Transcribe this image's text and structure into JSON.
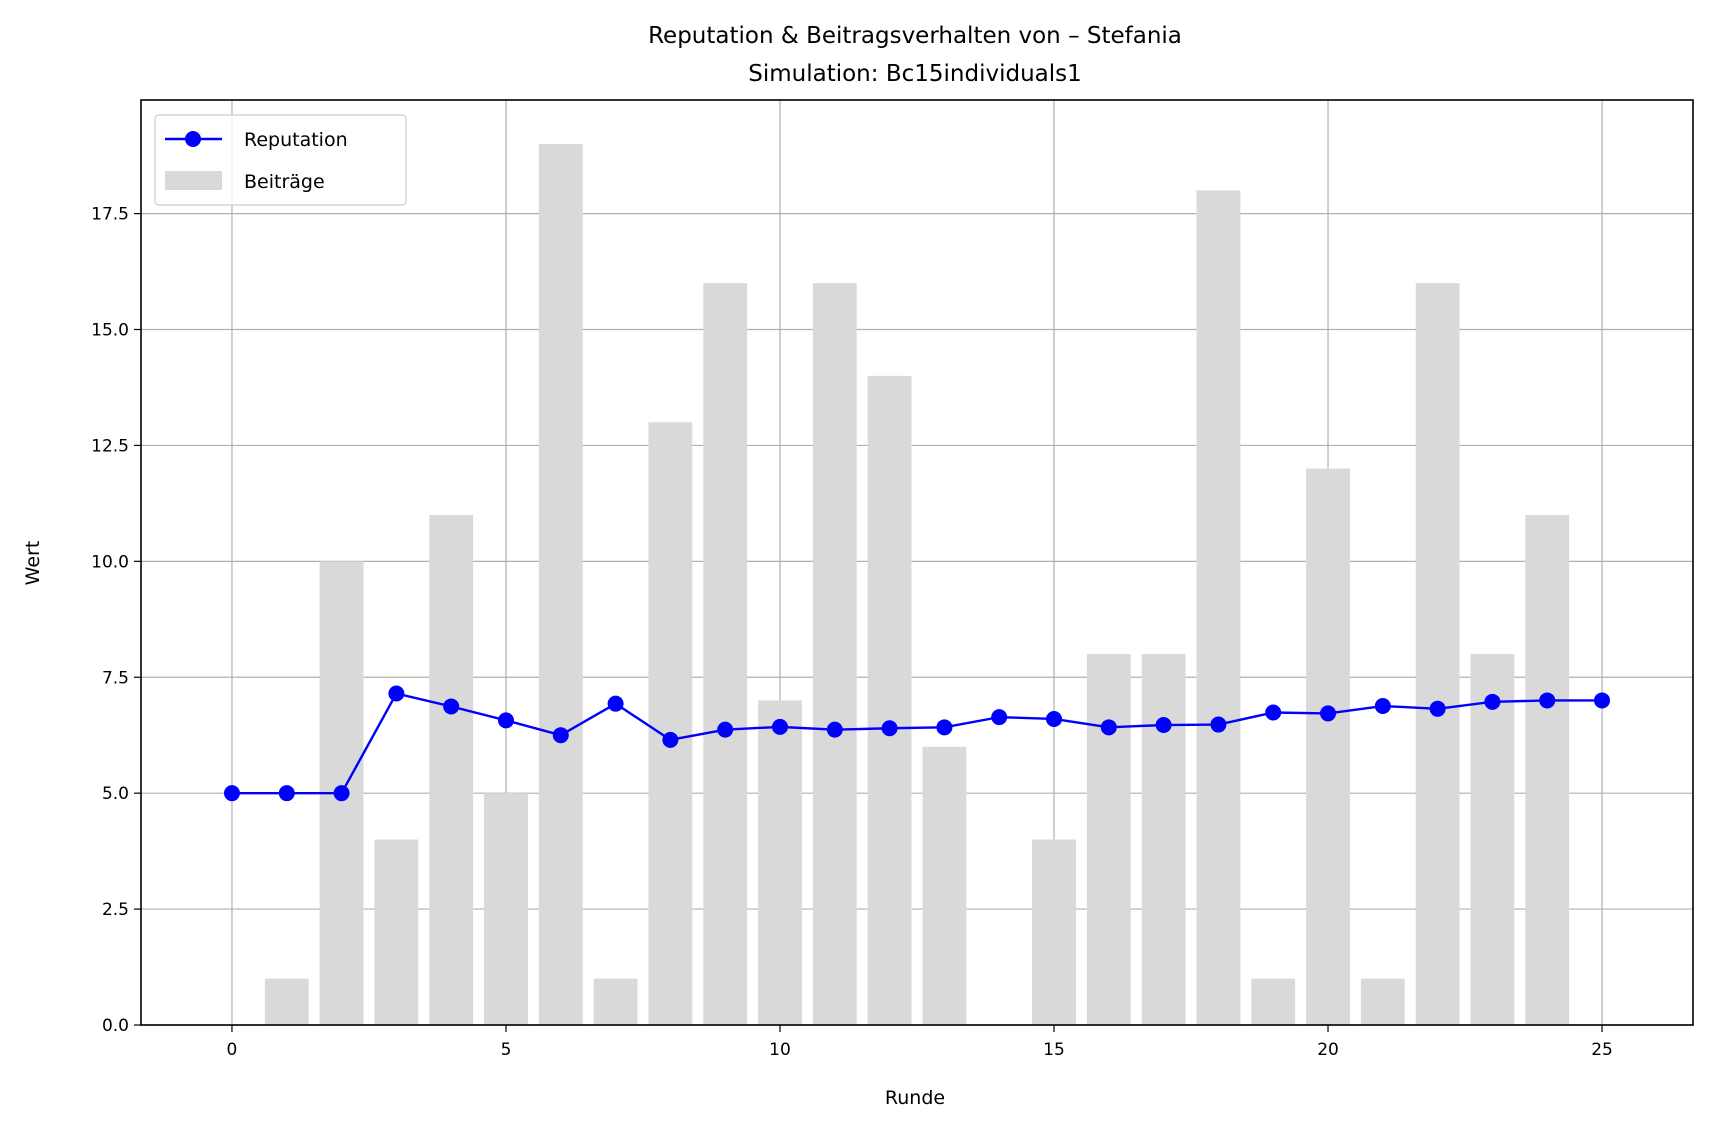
{
  "chart_data": {
    "type": "bar+line",
    "title": "Reputation & Beitragsverhalten von – Stefania",
    "subtitle": "Simulation: Bc15individuals1",
    "xlabel": "Runde",
    "ylabel": "Wert",
    "xlim": [
      -1.66,
      26.66
    ],
    "ylim": [
      0,
      19.95
    ],
    "xticks": [
      0,
      5,
      10,
      15,
      20,
      25
    ],
    "xtick_labels": [
      "0",
      "5",
      "10",
      "15",
      "20",
      "25"
    ],
    "yticks": [
      0,
      2.5,
      5,
      7.5,
      10,
      12.5,
      15,
      17.5
    ],
    "ytick_labels": [
      "0.0",
      "2.5",
      "5.0",
      "7.5",
      "10.0",
      "12.5",
      "15.0",
      "17.5"
    ],
    "grid": true,
    "legend_position": "top-left",
    "x": [
      0,
      1,
      2,
      3,
      4,
      5,
      6,
      7,
      8,
      9,
      10,
      11,
      12,
      13,
      14,
      15,
      16,
      17,
      18,
      19,
      20,
      21,
      22,
      23,
      24,
      25
    ],
    "series": [
      {
        "name": "Reputation",
        "type": "line",
        "color": "#0000ff",
        "marker": "circle",
        "values": [
          5.0,
          5.0,
          5.0,
          7.15,
          6.87,
          6.57,
          6.25,
          6.93,
          6.15,
          6.37,
          6.43,
          6.37,
          6.4,
          6.42,
          6.64,
          6.6,
          6.42,
          6.47,
          6.48,
          6.74,
          6.72,
          6.88,
          6.82,
          6.97,
          7.0,
          7.0
        ]
      },
      {
        "name": "Beiträge",
        "type": "bar",
        "color": "#d9d9d9",
        "values": [
          0,
          1,
          10,
          4,
          11,
          5,
          19,
          1,
          13,
          16,
          7,
          16,
          14,
          6,
          0,
          4,
          8,
          8,
          18,
          1,
          12,
          1,
          16,
          8,
          11,
          0
        ]
      }
    ]
  }
}
